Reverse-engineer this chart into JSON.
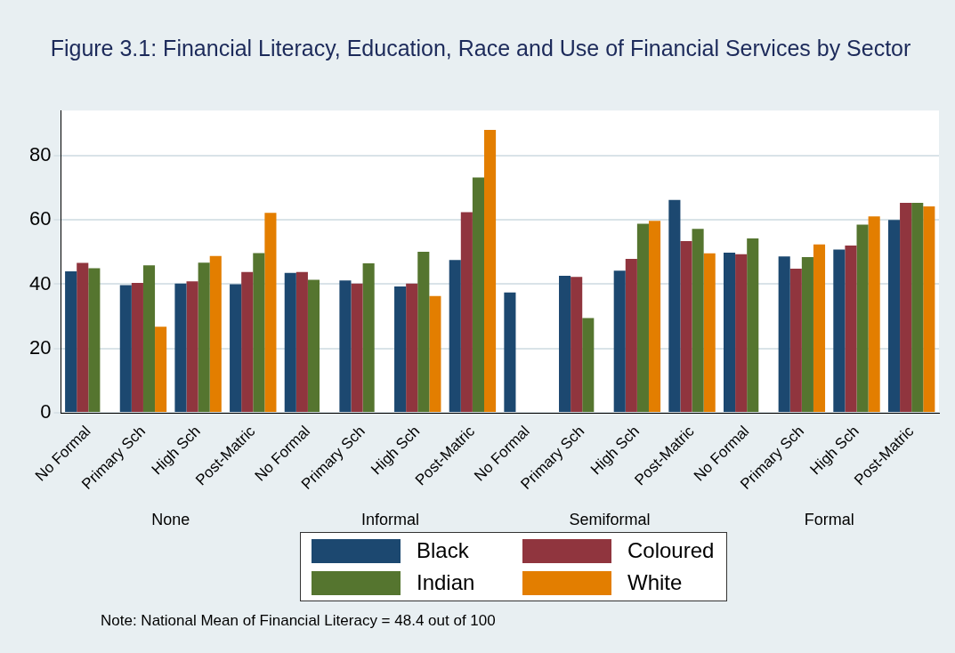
{
  "chart_data": {
    "type": "bar",
    "title": "Figure 3.1: Financial Literacy, Education, Race and Use of Financial Services by Sector",
    "categories": [
      "No Formal",
      "Primary Sch",
      "High Sch",
      "Post-Matric",
      "No Formal",
      "Primary Sch",
      "High Sch",
      "Post-Matric",
      "No Formal",
      "Primary Sch",
      "High Sch",
      "Post-Matric",
      "No Formal",
      "Primary Sch",
      "High Sch",
      "Post-Matric"
    ],
    "series": [
      {
        "name": "Black",
        "color": "#1c4870",
        "values": [
          44.0,
          39.7,
          40.2,
          40.0,
          43.5,
          41.2,
          39.3,
          47.5,
          37.4,
          42.6,
          44.2,
          66.2,
          49.8,
          48.6,
          50.8,
          60.0
        ]
      },
      {
        "name": "Coloured",
        "color": "#90353e",
        "values": [
          46.6,
          40.4,
          40.9,
          43.8,
          43.8,
          40.2,
          40.2,
          62.4,
          null,
          42.3,
          47.9,
          53.4,
          49.3,
          44.8,
          52.0,
          65.3
        ]
      },
      {
        "name": "Indian",
        "color": "#55752f",
        "values": [
          45.0,
          45.9,
          46.7,
          49.7,
          41.4,
          46.5,
          50.1,
          73.2,
          null,
          29.5,
          58.8,
          57.2,
          54.2,
          48.4,
          58.5,
          65.3
        ]
      },
      {
        "name": "White",
        "color": "#e37e00",
        "values": [
          null,
          26.8,
          48.8,
          62.2,
          null,
          null,
          36.3,
          88.0,
          null,
          null,
          59.7,
          49.6,
          null,
          52.4,
          61.1,
          64.2
        ]
      }
    ],
    "ylim": [
      0,
      94
    ],
    "yticks": [
      0,
      20,
      40,
      60,
      80
    ],
    "grid": "y",
    "legend": "bottom",
    "annotations": [
      "None",
      "Informal",
      "Semiformal",
      "Formal",
      "Note: National Mean of Financial Literacy = 48.4 out of 100"
    ]
  }
}
